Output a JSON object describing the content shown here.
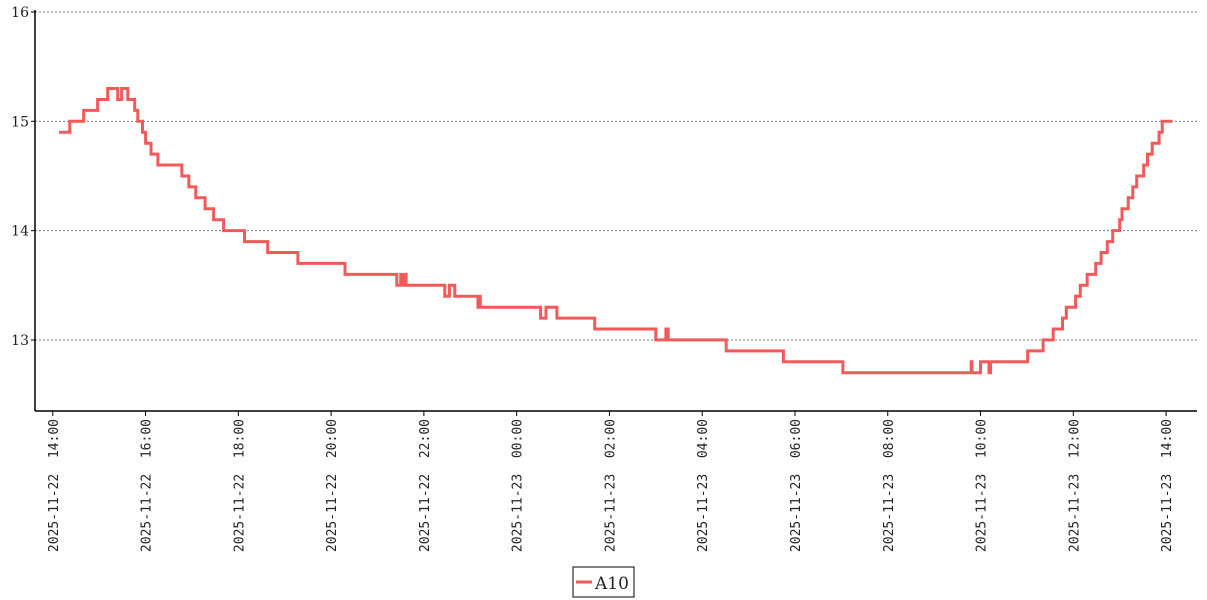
{
  "chart_data": {
    "type": "line",
    "step": true,
    "title": "",
    "xlabel": "",
    "ylabel": "",
    "ylim": [
      12.35,
      16
    ],
    "xlim": [
      "2025-11-22 13:37",
      "2025-11-23 14:40"
    ],
    "yticks": [
      13,
      14,
      15,
      16
    ],
    "xticks": [
      "2025-11-22 14:00",
      "2025-11-22 16:00",
      "2025-11-22 18:00",
      "2025-11-22 20:00",
      "2025-11-22 22:00",
      "2025-11-23 00:00",
      "2025-11-23 02:00",
      "2025-11-23 04:00",
      "2025-11-23 06:00",
      "2025-11-23 08:00",
      "2025-11-23 10:00",
      "2025-11-23 12:00",
      "2025-11-23 14:00"
    ],
    "xtick_labels": [
      "2025-11-22  14:00",
      "2025-11-22  16:00",
      "2025-11-22  18:00",
      "2025-11-22  20:00",
      "2025-11-22  22:00",
      "2025-11-23  00:00",
      "2025-11-23  02:00",
      "2025-11-23  04:00",
      "2025-11-23  06:00",
      "2025-11-23  08:00",
      "2025-11-23  10:00",
      "2025-11-23  12:00",
      "2025-11-23  14:00"
    ],
    "grid": "horizontal-dotted",
    "legend_position": "bottom-center",
    "series": [
      {
        "name": "A10",
        "color": "#f05a5a",
        "points": [
          [
            "2025-11-22 14:08",
            14.9
          ],
          [
            "2025-11-22 14:22",
            15.0
          ],
          [
            "2025-11-22 14:40",
            15.1
          ],
          [
            "2025-11-22 14:58",
            15.2
          ],
          [
            "2025-11-22 15:11",
            15.3
          ],
          [
            "2025-11-22 15:24",
            15.2
          ],
          [
            "2025-11-22 15:29",
            15.3
          ],
          [
            "2025-11-22 15:37",
            15.2
          ],
          [
            "2025-11-22 15:46",
            15.1
          ],
          [
            "2025-11-22 15:50",
            15.0
          ],
          [
            "2025-11-22 15:56",
            14.9
          ],
          [
            "2025-11-22 16:00",
            14.8
          ],
          [
            "2025-11-22 16:07",
            14.7
          ],
          [
            "2025-11-22 16:16",
            14.6
          ],
          [
            "2025-11-22 16:47",
            14.5
          ],
          [
            "2025-11-22 16:56",
            14.4
          ],
          [
            "2025-11-22 17:05",
            14.3
          ],
          [
            "2025-11-22 17:17",
            14.2
          ],
          [
            "2025-11-22 17:28",
            14.1
          ],
          [
            "2025-11-22 17:41",
            14.0
          ],
          [
            "2025-11-22 18:08",
            13.9
          ],
          [
            "2025-11-22 18:38",
            13.8
          ],
          [
            "2025-11-22 19:17",
            13.7
          ],
          [
            "2025-11-22 20:18",
            13.6
          ],
          [
            "2025-11-22 21:25",
            13.5
          ],
          [
            "2025-11-22 21:30",
            13.6
          ],
          [
            "2025-11-22 21:33",
            13.5
          ],
          [
            "2025-11-22 21:35",
            13.6
          ],
          [
            "2025-11-22 21:37",
            13.5
          ],
          [
            "2025-11-22 22:27",
            13.4
          ],
          [
            "2025-11-22 22:33",
            13.5
          ],
          [
            "2025-11-22 22:40",
            13.4
          ],
          [
            "2025-11-22 23:10",
            13.3
          ],
          [
            "2025-11-22 23:11",
            13.4
          ],
          [
            "2025-11-22 23:13",
            13.3
          ],
          [
            "2025-11-23 00:31",
            13.2
          ],
          [
            "2025-11-23 00:38",
            13.3
          ],
          [
            "2025-11-23 00:52",
            13.2
          ],
          [
            "2025-11-23 01:41",
            13.1
          ],
          [
            "2025-11-23 03:00",
            13.0
          ],
          [
            "2025-11-23 03:13",
            13.1
          ],
          [
            "2025-11-23 03:16",
            13.0
          ],
          [
            "2025-11-23 04:31",
            12.9
          ],
          [
            "2025-11-23 05:45",
            12.8
          ],
          [
            "2025-11-23 07:02",
            12.7
          ],
          [
            "2025-11-23 09:48",
            12.8
          ],
          [
            "2025-11-23 09:49",
            12.7
          ],
          [
            "2025-11-23 10:00",
            12.8
          ],
          [
            "2025-11-23 10:11",
            12.7
          ],
          [
            "2025-11-23 10:13",
            12.8
          ],
          [
            "2025-11-23 11:01",
            12.9
          ],
          [
            "2025-11-23 11:21",
            13.0
          ],
          [
            "2025-11-23 11:34",
            13.1
          ],
          [
            "2025-11-23 11:46",
            13.2
          ],
          [
            "2025-11-23 11:51",
            13.3
          ],
          [
            "2025-11-23 12:03",
            13.4
          ],
          [
            "2025-11-23 12:09",
            13.5
          ],
          [
            "2025-11-23 12:18",
            13.6
          ],
          [
            "2025-11-23 12:29",
            13.7
          ],
          [
            "2025-11-23 12:36",
            13.8
          ],
          [
            "2025-11-23 12:44",
            13.9
          ],
          [
            "2025-11-23 12:51",
            14.0
          ],
          [
            "2025-11-23 13:00",
            14.1
          ],
          [
            "2025-11-23 13:03",
            14.2
          ],
          [
            "2025-11-23 13:11",
            14.3
          ],
          [
            "2025-11-23 13:17",
            14.4
          ],
          [
            "2025-11-23 13:22",
            14.5
          ],
          [
            "2025-11-23 13:31",
            14.6
          ],
          [
            "2025-11-23 13:36",
            14.7
          ],
          [
            "2025-11-23 13:42",
            14.8
          ],
          [
            "2025-11-23 13:51",
            14.9
          ],
          [
            "2025-11-23 13:55",
            15.0
          ],
          [
            "2025-11-23 14:08",
            15.0
          ]
        ]
      }
    ]
  }
}
